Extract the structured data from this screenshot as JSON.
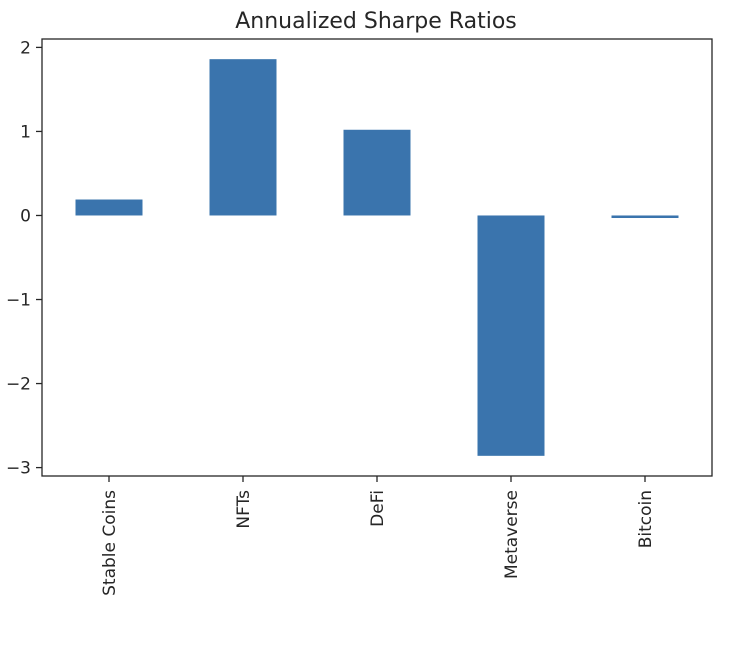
{
  "chart_data": {
    "type": "bar",
    "title": "Annualized Sharpe Ratios",
    "xlabel": "",
    "ylabel": "",
    "categories": [
      "Stable Coins",
      "NFTs",
      "DeFi",
      "Metaverse",
      "Bitcoin"
    ],
    "values": [
      0.19,
      1.86,
      1.02,
      -2.86,
      -0.03
    ],
    "ylim": [
      -3.1,
      2.1
    ],
    "yticks": [
      2,
      1,
      0,
      -1,
      -2,
      -3
    ],
    "ytick_labels": [
      "2",
      "1",
      "0",
      "−1",
      "−2",
      "−3"
    ],
    "grid": false,
    "legend": "none",
    "bar_color": "#3a74ad"
  }
}
